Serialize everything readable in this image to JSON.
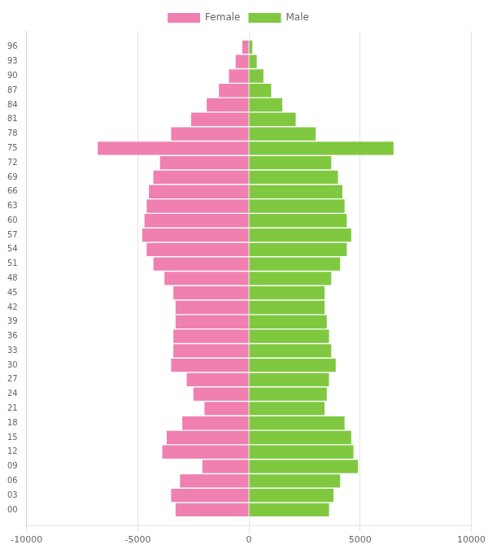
{
  "chart_data": {
    "type": "bar",
    "orientation": "horizontal",
    "y": [
      96,
      93,
      90,
      87,
      84,
      81,
      78,
      75,
      72,
      69,
      66,
      63,
      60,
      57,
      54,
      51,
      48,
      45,
      42,
      39,
      36,
      33,
      30,
      27,
      24,
      21,
      18,
      15,
      12,
      9,
      6,
      3,
      0
    ],
    "series": [
      {
        "name": "Female",
        "color": "#f080b0",
        "values": [
          -300,
          -600,
          -900,
          -1350,
          -1900,
          -2600,
          -3500,
          -6800,
          -4000,
          -4300,
          -4500,
          -4600,
          -4700,
          -4800,
          -4600,
          -4300,
          -3800,
          -3400,
          -3300,
          -3300,
          -3400,
          -3400,
          -3500,
          -2800,
          -2500,
          -2000,
          -3000,
          -3700,
          -3900,
          -2100,
          -3100,
          -3500,
          -3300
        ]
      },
      {
        "name": "Male",
        "color": "#80c840",
        "values": [
          150,
          350,
          650,
          1000,
          1500,
          2100,
          3000,
          6500,
          3700,
          4000,
          4200,
          4300,
          4400,
          4600,
          4400,
          4100,
          3700,
          3400,
          3400,
          3500,
          3600,
          3700,
          3900,
          3600,
          3500,
          3400,
          4300,
          4600,
          4700,
          4900,
          4100,
          3800,
          3600
        ]
      }
    ],
    "xlim": [
      -10000,
      10000
    ],
    "xticks": [
      -10000,
      -5000,
      0,
      5000,
      10000
    ],
    "ylim": [
      -1.8,
      97.8
    ],
    "yticks": [
      96,
      93,
      90,
      87,
      84,
      81,
      78,
      75,
      72,
      69,
      66,
      63,
      60,
      57,
      54,
      51,
      48,
      45,
      42,
      39,
      36,
      33,
      30,
      27,
      24,
      21,
      18,
      15,
      12,
      {
        "value": 9,
        "label": "09"
      },
      {
        "value": 6,
        "label": "06"
      },
      {
        "value": 3,
        "label": "03"
      },
      {
        "value": 0,
        "label": "00"
      }
    ],
    "grid": "x",
    "legend": "top"
  }
}
